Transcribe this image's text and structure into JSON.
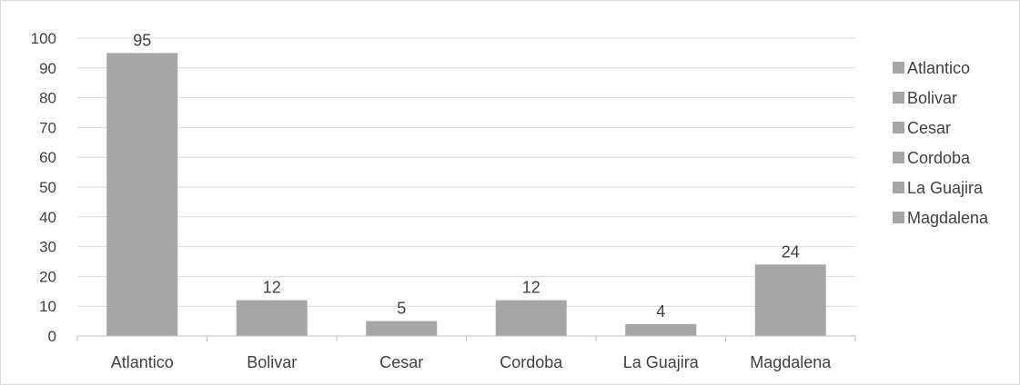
{
  "chart_data": {
    "type": "bar",
    "categories": [
      "Atlantico",
      "Bolivar",
      "Cesar",
      "Cordoba",
      "La Guajira",
      "Magdalena"
    ],
    "values": [
      95,
      12,
      5,
      12,
      4,
      24
    ],
    "data_labels": [
      "95",
      "12",
      "5",
      "12",
      "4",
      "24"
    ],
    "ylim": [
      0,
      100
    ],
    "yticks": [
      0,
      10,
      20,
      30,
      40,
      50,
      60,
      70,
      80,
      90,
      100
    ],
    "grid": true,
    "legend": {
      "position": "right",
      "entries": [
        "Atlantico",
        "Bolivar",
        "Cesar",
        "Cordoba",
        "La Guajira",
        "Magdalena"
      ]
    },
    "colors": {
      "bar": "#a6a6a6",
      "gridline": "#d9d9d9",
      "axis": "#bfbfbf",
      "text": "#404040"
    }
  }
}
